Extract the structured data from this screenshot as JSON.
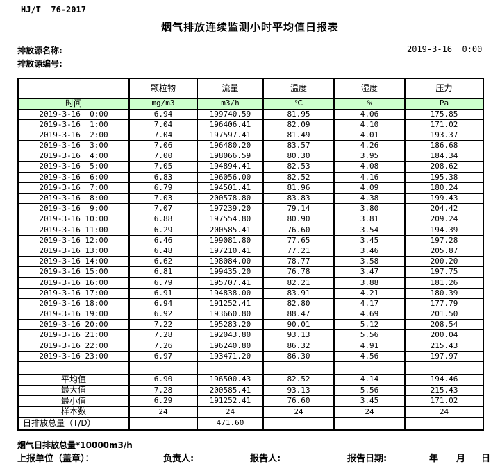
{
  "header": {
    "standard_no": "HJ/T  76-2017",
    "title": "烟气排放连续监测小时平均值日报表",
    "source_name_label": "排放源名称:",
    "source_id_label": "排放源编号:",
    "report_datetime": "2019-3-16  0:00"
  },
  "colors": {
    "unit_row_green": "#CCFFCC",
    "border": "#000000"
  },
  "table": {
    "time_header": "时间",
    "columns": [
      "颗粒物",
      "流量",
      "温度",
      "湿度",
      "压力"
    ],
    "units": [
      "mg/m3",
      "m3/h",
      "℃",
      "%",
      "Pa"
    ],
    "rows": [
      {
        "time": "2019-3-16  0:00",
        "values": [
          "6.94",
          "199740.59",
          "81.95",
          "4.06",
          "175.85"
        ]
      },
      {
        "time": "2019-3-16  1:00",
        "values": [
          "7.04",
          "196406.41",
          "82.09",
          "4.10",
          "171.02"
        ]
      },
      {
        "time": "2019-3-16  2:00",
        "values": [
          "7.04",
          "197597.41",
          "81.49",
          "4.01",
          "193.37"
        ]
      },
      {
        "time": "2019-3-16  3:00",
        "values": [
          "7.06",
          "196480.20",
          "83.57",
          "4.26",
          "186.68"
        ]
      },
      {
        "time": "2019-3-16  4:00",
        "values": [
          "7.00",
          "198066.59",
          "80.30",
          "3.95",
          "184.34"
        ]
      },
      {
        "time": "2019-3-16  5:00",
        "values": [
          "7.05",
          "194894.41",
          "82.53",
          "4.08",
          "208.62"
        ]
      },
      {
        "time": "2019-3-16  6:00",
        "values": [
          "6.83",
          "196056.00",
          "82.52",
          "4.16",
          "195.38"
        ]
      },
      {
        "time": "2019-3-16  7:00",
        "values": [
          "6.79",
          "194501.41",
          "81.96",
          "4.09",
          "180.24"
        ]
      },
      {
        "time": "2019-3-16  8:00",
        "values": [
          "7.03",
          "200578.80",
          "83.83",
          "4.38",
          "199.43"
        ]
      },
      {
        "time": "2019-3-16  9:00",
        "values": [
          "7.07",
          "197239.20",
          "79.14",
          "3.80",
          "204.42"
        ]
      },
      {
        "time": "2019-3-16 10:00",
        "values": [
          "6.88",
          "197554.80",
          "80.90",
          "3.81",
          "209.24"
        ]
      },
      {
        "time": "2019-3-16 11:00",
        "values": [
          "6.29",
          "200585.41",
          "76.60",
          "3.54",
          "194.39"
        ]
      },
      {
        "time": "2019-3-16 12:00",
        "values": [
          "6.46",
          "199081.80",
          "77.65",
          "3.45",
          "197.28"
        ]
      },
      {
        "time": "2019-3-16 13:00",
        "values": [
          "6.48",
          "197210.41",
          "77.21",
          "3.46",
          "205.87"
        ]
      },
      {
        "time": "2019-3-16 14:00",
        "values": [
          "6.62",
          "198084.00",
          "78.77",
          "3.58",
          "200.20"
        ]
      },
      {
        "time": "2019-3-16 15:00",
        "values": [
          "6.81",
          "199435.20",
          "76.78",
          "3.47",
          "197.75"
        ]
      },
      {
        "time": "2019-3-16 16:00",
        "values": [
          "6.79",
          "195707.41",
          "82.21",
          "3.88",
          "181.26"
        ]
      },
      {
        "time": "2019-3-16 17:00",
        "values": [
          "6.91",
          "194838.00",
          "83.91",
          "4.21",
          "180.39"
        ]
      },
      {
        "time": "2019-3-16 18:00",
        "values": [
          "6.94",
          "191252.41",
          "82.80",
          "4.17",
          "177.79"
        ]
      },
      {
        "time": "2019-3-16 19:00",
        "values": [
          "6.92",
          "193660.80",
          "88.47",
          "4.69",
          "201.50"
        ]
      },
      {
        "time": "2019-3-16 20:00",
        "values": [
          "7.22",
          "195283.20",
          "90.01",
          "5.12",
          "208.54"
        ]
      },
      {
        "time": "2019-3-16 21:00",
        "values": [
          "7.28",
          "192043.80",
          "93.13",
          "5.56",
          "200.04"
        ]
      },
      {
        "time": "2019-3-16 22:00",
        "values": [
          "7.26",
          "196240.80",
          "86.32",
          "4.91",
          "215.43"
        ]
      },
      {
        "time": "2019-3-16 23:00",
        "values": [
          "6.97",
          "193471.20",
          "86.30",
          "4.56",
          "197.97"
        ]
      }
    ],
    "summary": [
      {
        "label": "平均值",
        "values": [
          "6.90",
          "196500.43",
          "82.52",
          "4.14",
          "194.46"
        ]
      },
      {
        "label": "最大值",
        "values": [
          "7.28",
          "200585.41",
          "93.13",
          "5.56",
          "215.43"
        ]
      },
      {
        "label": "最小值",
        "values": [
          "6.29",
          "191252.41",
          "76.60",
          "3.45",
          "171.02"
        ]
      },
      {
        "label": "样本数",
        "values": [
          "24",
          "24",
          "24",
          "24",
          "24"
        ]
      }
    ],
    "total_row": {
      "label": "日排放总量（T/D）",
      "values": [
        "",
        "471.60",
        "",
        "",
        ""
      ]
    }
  },
  "footer": {
    "note": "烟气日排放总量*10000m3/h",
    "report_unit_label": "上报单位（盖章）：",
    "responsible_label": "负责人:",
    "reporter_label": "报告人:",
    "report_date_label": "报告日期:",
    "year_label": "年",
    "month_label": "月",
    "day_label": "日"
  }
}
